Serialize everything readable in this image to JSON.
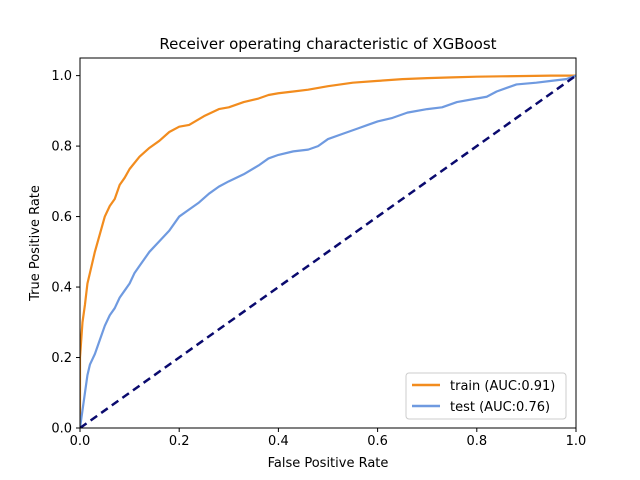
{
  "chart_data": {
    "type": "line",
    "title": "Receiver operating characteristic of XGBoost",
    "xlabel": "False Positive Rate",
    "ylabel": "True Positive Rate",
    "xlim": [
      0.0,
      1.0
    ],
    "ylim": [
      0.0,
      1.05
    ],
    "xticks": [
      "0.0",
      "0.2",
      "0.4",
      "0.6",
      "0.8",
      "1.0"
    ],
    "yticks": [
      "0.0",
      "0.2",
      "0.4",
      "0.6",
      "0.8",
      "1.0"
    ],
    "grid": false,
    "legend_position": "lower right",
    "series": [
      {
        "name": "train (AUC:0.91)",
        "color": "#f28c1e",
        "style": "solid",
        "points": [
          [
            0.0,
            0.0
          ],
          [
            0.0,
            0.2
          ],
          [
            0.005,
            0.3
          ],
          [
            0.01,
            0.35
          ],
          [
            0.015,
            0.41
          ],
          [
            0.02,
            0.44
          ],
          [
            0.03,
            0.5
          ],
          [
            0.04,
            0.55
          ],
          [
            0.05,
            0.6
          ],
          [
            0.06,
            0.63
          ],
          [
            0.07,
            0.65
          ],
          [
            0.08,
            0.69
          ],
          [
            0.09,
            0.71
          ],
          [
            0.1,
            0.735
          ],
          [
            0.12,
            0.77
          ],
          [
            0.14,
            0.795
          ],
          [
            0.16,
            0.815
          ],
          [
            0.18,
            0.84
          ],
          [
            0.2,
            0.855
          ],
          [
            0.22,
            0.86
          ],
          [
            0.25,
            0.885
          ],
          [
            0.28,
            0.905
          ],
          [
            0.3,
            0.91
          ],
          [
            0.33,
            0.925
          ],
          [
            0.36,
            0.935
          ],
          [
            0.38,
            0.945
          ],
          [
            0.4,
            0.95
          ],
          [
            0.43,
            0.955
          ],
          [
            0.46,
            0.96
          ],
          [
            0.5,
            0.97
          ],
          [
            0.55,
            0.98
          ],
          [
            0.6,
            0.985
          ],
          [
            0.65,
            0.99
          ],
          [
            0.7,
            0.993
          ],
          [
            0.75,
            0.995
          ],
          [
            0.8,
            0.997
          ],
          [
            0.85,
            0.998
          ],
          [
            0.9,
            0.999
          ],
          [
            0.95,
            1.0
          ],
          [
            1.0,
            1.0
          ]
        ]
      },
      {
        "name": "test (AUC:0.76)",
        "color": "#6f9ae0",
        "style": "solid",
        "points": [
          [
            0.0,
            0.0
          ],
          [
            0.005,
            0.05
          ],
          [
            0.01,
            0.1
          ],
          [
            0.015,
            0.15
          ],
          [
            0.02,
            0.18
          ],
          [
            0.03,
            0.21
          ],
          [
            0.04,
            0.25
          ],
          [
            0.05,
            0.29
          ],
          [
            0.06,
            0.32
          ],
          [
            0.07,
            0.34
          ],
          [
            0.08,
            0.37
          ],
          [
            0.09,
            0.39
          ],
          [
            0.1,
            0.41
          ],
          [
            0.11,
            0.44
          ],
          [
            0.12,
            0.46
          ],
          [
            0.14,
            0.5
          ],
          [
            0.16,
            0.53
          ],
          [
            0.18,
            0.56
          ],
          [
            0.2,
            0.6
          ],
          [
            0.22,
            0.62
          ],
          [
            0.24,
            0.64
          ],
          [
            0.26,
            0.665
          ],
          [
            0.28,
            0.685
          ],
          [
            0.3,
            0.7
          ],
          [
            0.33,
            0.72
          ],
          [
            0.36,
            0.745
          ],
          [
            0.38,
            0.765
          ],
          [
            0.4,
            0.775
          ],
          [
            0.43,
            0.785
          ],
          [
            0.46,
            0.79
          ],
          [
            0.48,
            0.8
          ],
          [
            0.5,
            0.82
          ],
          [
            0.53,
            0.835
          ],
          [
            0.56,
            0.85
          ],
          [
            0.58,
            0.86
          ],
          [
            0.6,
            0.87
          ],
          [
            0.63,
            0.88
          ],
          [
            0.66,
            0.895
          ],
          [
            0.7,
            0.905
          ],
          [
            0.73,
            0.91
          ],
          [
            0.76,
            0.925
          ],
          [
            0.8,
            0.935
          ],
          [
            0.82,
            0.94
          ],
          [
            0.84,
            0.955
          ],
          [
            0.86,
            0.965
          ],
          [
            0.88,
            0.975
          ],
          [
            0.92,
            0.98
          ],
          [
            0.95,
            0.985
          ],
          [
            0.98,
            0.99
          ],
          [
            1.0,
            1.0
          ]
        ]
      },
      {
        "name": "",
        "color": "#0a0a6e",
        "style": "dashed",
        "points": [
          [
            0.0,
            0.0
          ],
          [
            1.0,
            1.0
          ]
        ]
      }
    ],
    "legend": [
      {
        "label": "train (AUC:0.91)",
        "color": "#f28c1e"
      },
      {
        "label": "test (AUC:0.76)",
        "color": "#6f9ae0"
      }
    ]
  }
}
